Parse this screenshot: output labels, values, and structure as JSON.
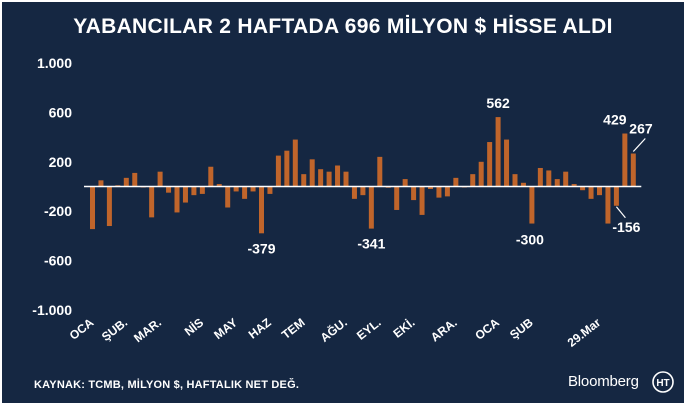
{
  "header": {
    "title": "YABANCILAR 2 HAFTADA 696 MİLYON $ HİSSE ALDI"
  },
  "footer": {
    "source": "KAYNAK: TCMB, MİLYON $, HAFTALIK NET DEĞ.",
    "brand": "Bloomberg",
    "logo_text": "HT"
  },
  "colors": {
    "background": "#152742",
    "bar": "#c0652b",
    "text": "#ffffff",
    "axis": "#ffffff"
  },
  "chart_data": {
    "type": "bar",
    "title": "YABANCILAR 2 HAFTADA 696 MİLYON $ HİSSE ALDI",
    "xlabel": "",
    "ylabel": "MİLYON $",
    "ylim": [
      -1000,
      1000
    ],
    "yticks": [
      {
        "value": 1000,
        "label": "1.000"
      },
      {
        "value": 600,
        "label": "600"
      },
      {
        "value": 200,
        "label": "200"
      },
      {
        "value": -200,
        "label": "-200"
      },
      {
        "value": -600,
        "label": "-600"
      },
      {
        "value": -1000,
        "label": "-1.000"
      }
    ],
    "xticks": [
      {
        "index": 0,
        "label": "OCA"
      },
      {
        "index": 4,
        "label": "ŞUB."
      },
      {
        "index": 8,
        "label": "MAR."
      },
      {
        "index": 13,
        "label": "NİS"
      },
      {
        "index": 17,
        "label": "MAY"
      },
      {
        "index": 21,
        "label": "HAZ"
      },
      {
        "index": 25,
        "label": "TEM"
      },
      {
        "index": 30,
        "label": "AĞU."
      },
      {
        "index": 34,
        "label": "EYL."
      },
      {
        "index": 38,
        "label": "EKİ."
      },
      {
        "index": 43,
        "label": "ARA."
      },
      {
        "index": 48,
        "label": "OCA"
      },
      {
        "index": 52,
        "label": "ŞUB"
      },
      {
        "index": 60,
        "label": "29.Mar"
      }
    ],
    "values": [
      -345,
      50,
      -320,
      10,
      70,
      110,
      0,
      -250,
      120,
      -50,
      -210,
      -130,
      -70,
      -60,
      160,
      20,
      -170,
      -40,
      -100,
      -40,
      -379,
      -60,
      250,
      290,
      380,
      100,
      220,
      140,
      120,
      170,
      120,
      -100,
      -70,
      -341,
      240,
      -10,
      -190,
      60,
      -110,
      -230,
      -20,
      -90,
      -80,
      70,
      0,
      100,
      200,
      360,
      562,
      380,
      100,
      30,
      -300,
      150,
      130,
      60,
      120,
      20,
      -30,
      -100,
      -70,
      -300,
      -156,
      429,
      267
    ],
    "annotations": [
      {
        "index": 20,
        "label": "-379"
      },
      {
        "index": 33,
        "label": "-341"
      },
      {
        "index": 48,
        "label": "562"
      },
      {
        "index": 52,
        "label": "-300"
      },
      {
        "index": 62,
        "label": "-156"
      },
      {
        "index": 63,
        "label": "429"
      },
      {
        "index": 64,
        "label": "267"
      }
    ]
  }
}
